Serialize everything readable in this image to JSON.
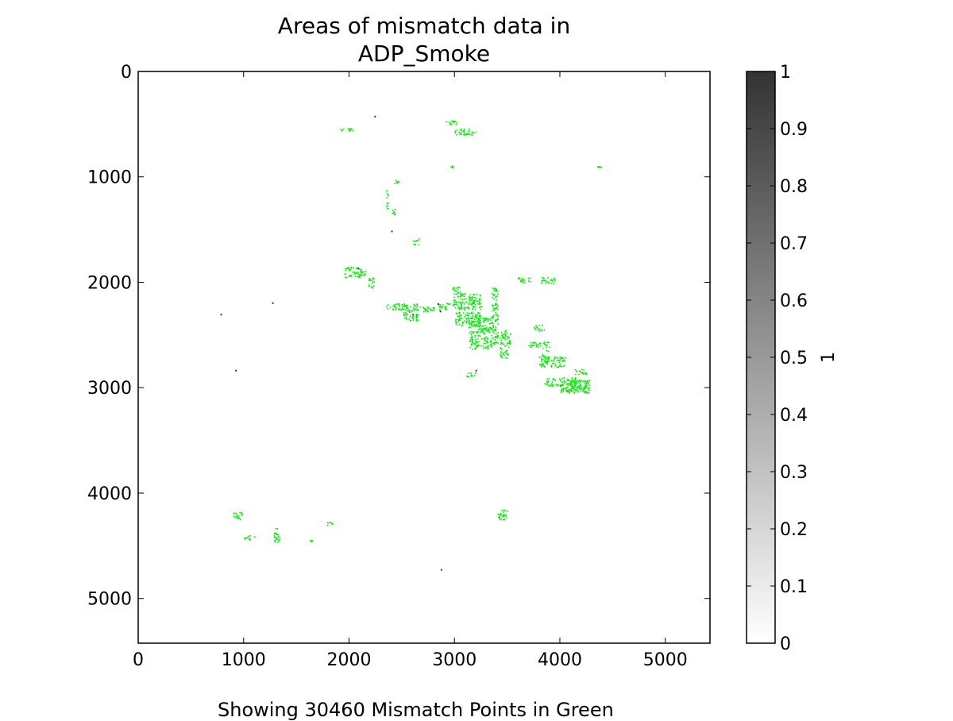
{
  "chart_data": {
    "type": "heatmap",
    "title_lines": [
      "Areas of mismatch data in",
      "ADP_Smoke"
    ],
    "footer": "Showing 30460 Mismatch Points in Green",
    "x_ticks": [
      0,
      1000,
      2000,
      3000,
      4000,
      5000
    ],
    "y_ticks": [
      0,
      1000,
      2000,
      3000,
      4000,
      5000
    ],
    "xlim": [
      0,
      5424
    ],
    "ylim": [
      5424,
      0
    ],
    "colorbar": {
      "label": "1",
      "ticks": [
        "0",
        "0.1",
        "0.2",
        "0.3",
        "0.4",
        "0.5",
        "0.6",
        "0.7",
        "0.8",
        "0.9",
        "1"
      ],
      "colormap": "gray_r",
      "range": [
        0,
        1
      ]
    },
    "mismatch_color": "#00ee00",
    "dark_color": "#333333",
    "mismatch_regions": [
      {
        "x": 1900,
        "y": 530,
        "w": 150,
        "h": 30
      },
      {
        "x": 2900,
        "y": 460,
        "w": 120,
        "h": 40
      },
      {
        "x": 3000,
        "y": 540,
        "w": 200,
        "h": 60
      },
      {
        "x": 2950,
        "y": 890,
        "w": 40,
        "h": 20
      },
      {
        "x": 4350,
        "y": 890,
        "w": 40,
        "h": 20
      },
      {
        "x": 2420,
        "y": 1030,
        "w": 60,
        "h": 30
      },
      {
        "x": 2350,
        "y": 1100,
        "w": 20,
        "h": 200
      },
      {
        "x": 2400,
        "y": 1300,
        "w": 40,
        "h": 80
      },
      {
        "x": 2600,
        "y": 1580,
        "w": 60,
        "h": 60
      },
      {
        "x": 1950,
        "y": 1850,
        "w": 200,
        "h": 100
      },
      {
        "x": 2180,
        "y": 1950,
        "w": 60,
        "h": 100
      },
      {
        "x": 3600,
        "y": 1950,
        "w": 120,
        "h": 50
      },
      {
        "x": 3800,
        "y": 1950,
        "w": 150,
        "h": 60
      },
      {
        "x": 2350,
        "y": 2200,
        "w": 200,
        "h": 60
      },
      {
        "x": 2500,
        "y": 2200,
        "w": 150,
        "h": 160
      },
      {
        "x": 2650,
        "y": 2230,
        "w": 100,
        "h": 50
      },
      {
        "x": 2760,
        "y": 2230,
        "w": 80,
        "h": 40
      },
      {
        "x": 2850,
        "y": 2190,
        "w": 110,
        "h": 70
      },
      {
        "x": 2980,
        "y": 2040,
        "w": 80,
        "h": 220
      },
      {
        "x": 3050,
        "y": 2100,
        "w": 200,
        "h": 160
      },
      {
        "x": 3000,
        "y": 2280,
        "w": 250,
        "h": 130
      },
      {
        "x": 3130,
        "y": 2330,
        "w": 220,
        "h": 300
      },
      {
        "x": 3350,
        "y": 2050,
        "w": 60,
        "h": 550
      },
      {
        "x": 3430,
        "y": 2450,
        "w": 100,
        "h": 150
      },
      {
        "x": 3430,
        "y": 2600,
        "w": 80,
        "h": 120
      },
      {
        "x": 3700,
        "y": 2560,
        "w": 200,
        "h": 60
      },
      {
        "x": 3750,
        "y": 2400,
        "w": 100,
        "h": 60
      },
      {
        "x": 3830,
        "y": 2620,
        "w": 60,
        "h": 130
      },
      {
        "x": 3800,
        "y": 2700,
        "w": 250,
        "h": 100
      },
      {
        "x": 4130,
        "y": 2820,
        "w": 120,
        "h": 50
      },
      {
        "x": 3850,
        "y": 2900,
        "w": 300,
        "h": 80
      },
      {
        "x": 4000,
        "y": 2920,
        "w": 280,
        "h": 130
      },
      {
        "x": 4050,
        "y": 2980,
        "w": 200,
        "h": 60
      },
      {
        "x": 3100,
        "y": 2850,
        "w": 100,
        "h": 40
      },
      {
        "x": 3400,
        "y": 4150,
        "w": 100,
        "h": 100
      },
      {
        "x": 900,
        "y": 4180,
        "w": 80,
        "h": 80
      },
      {
        "x": 1000,
        "y": 4400,
        "w": 100,
        "h": 40
      },
      {
        "x": 1280,
        "y": 4320,
        "w": 60,
        "h": 140
      },
      {
        "x": 1780,
        "y": 4270,
        "w": 60,
        "h": 40
      },
      {
        "x": 1620,
        "y": 4440,
        "w": 40,
        "h": 20
      }
    ],
    "dark_marks": [
      {
        "x": 2240,
        "y": 420
      },
      {
        "x": 2080,
        "y": 1860
      },
      {
        "x": 2840,
        "y": 2200
      },
      {
        "x": 2860,
        "y": 2270
      },
      {
        "x": 3200,
        "y": 2830
      },
      {
        "x": 2600,
        "y": 2300
      },
      {
        "x": 2400,
        "y": 1510
      },
      {
        "x": 1270,
        "y": 2190
      },
      {
        "x": 780,
        "y": 2300
      },
      {
        "x": 920,
        "y": 2830
      },
      {
        "x": 2870,
        "y": 4720
      }
    ]
  }
}
